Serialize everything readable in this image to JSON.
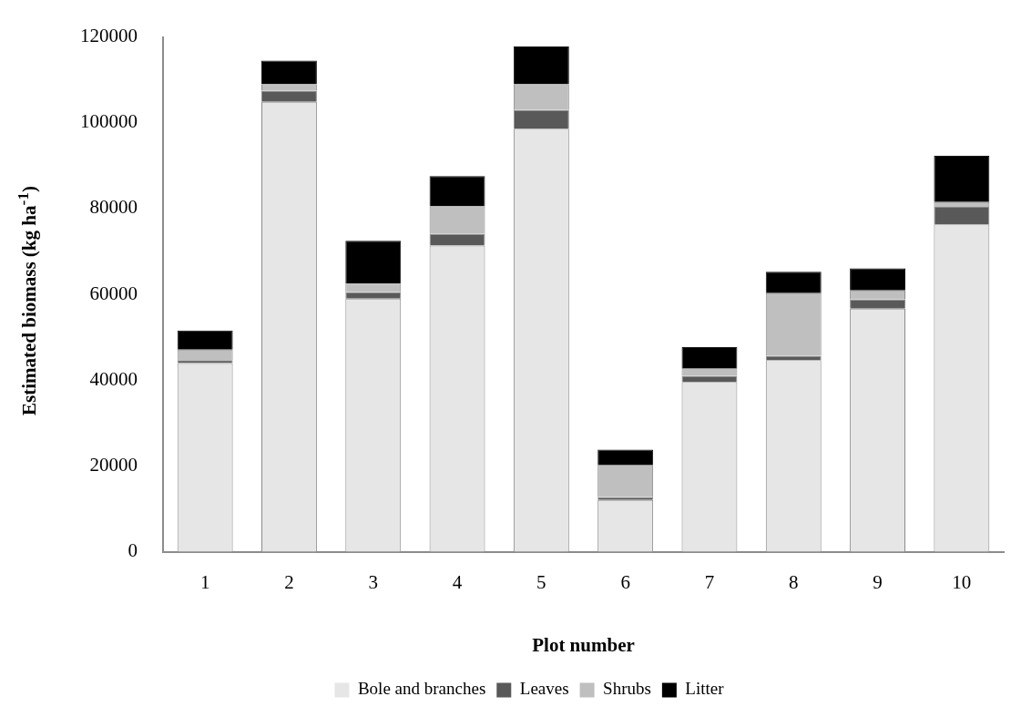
{
  "chart_data": {
    "type": "bar",
    "stacked": true,
    "xlabel": "Plot number",
    "ylabel": "Estimated biomass (kg ha$^{-1}$)",
    "categories": [
      "1",
      "2",
      "3",
      "4",
      "5",
      "6",
      "7",
      "8",
      "9",
      "10"
    ],
    "series": [
      {
        "name": "Bole and branches",
        "color": "#e6e6e6",
        "values": [
          44000,
          104900,
          59000,
          71400,
          98600,
          12100,
          39600,
          44700,
          56700,
          76300
        ]
      },
      {
        "name": "Leaves",
        "color": "#595959",
        "values": [
          700,
          2600,
          1500,
          2700,
          4400,
          600,
          1400,
          1000,
          2100,
          4100
        ]
      },
      {
        "name": "Shrubs",
        "color": "#bfbfbf",
        "values": [
          2400,
          1500,
          2000,
          6400,
          6000,
          7600,
          1800,
          14600,
          2100,
          1100
        ]
      },
      {
        "name": "Litter",
        "color": "#000000",
        "values": [
          4500,
          5500,
          10000,
          7100,
          8800,
          3500,
          4900,
          5000,
          5200,
          10800
        ]
      }
    ],
    "ylim": [
      0,
      120000
    ],
    "yticks": [
      0,
      20000,
      40000,
      60000,
      80000,
      100000,
      120000
    ],
    "grid": false,
    "legend": "bottom"
  }
}
